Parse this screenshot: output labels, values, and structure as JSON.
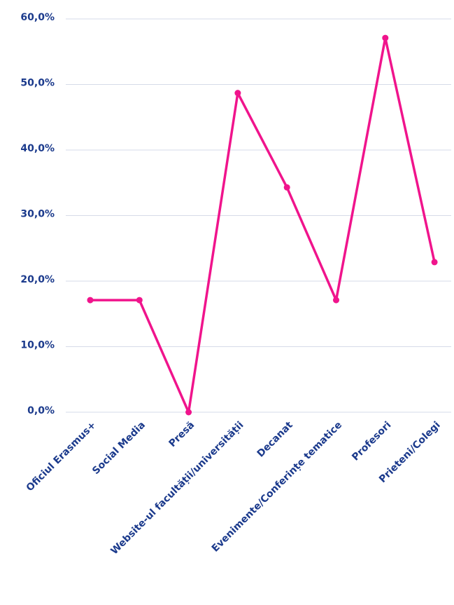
{
  "chart_data": {
    "type": "line",
    "categories": [
      "Oficiul Erasmus+",
      "Social Media",
      "Presă",
      "Website-ul facultății/universității",
      "Decanat",
      "Evenimente/Conferințe tematice",
      "Profesori",
      "Prieteni/Colegi"
    ],
    "series": [
      {
        "name": null,
        "color": "#f0148c",
        "values": [
          17.1,
          17.1,
          0,
          48.7,
          34.3,
          17.1,
          57.1,
          22.9
        ]
      }
    ],
    "ylim": [
      0,
      60
    ],
    "yticks": [
      {
        "value": 0,
        "label": "0,0%"
      },
      {
        "value": 10,
        "label": "10,0%"
      },
      {
        "value": 20,
        "label": "20,0%"
      },
      {
        "value": 30,
        "label": "30,0%"
      },
      {
        "value": 40,
        "label": "40,0%"
      },
      {
        "value": 50,
        "label": "50,0%"
      },
      {
        "value": 60,
        "label": "60,0%"
      }
    ],
    "grid": true
  }
}
